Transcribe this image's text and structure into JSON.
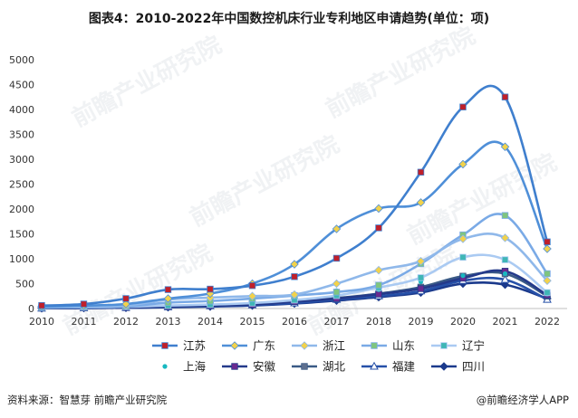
{
  "title": "图表4：2010-2022年中国数控机床行业专利地区申请趋势(单位：项)",
  "source": "资料来源：智慧芽 前瞻产业研究院",
  "credit": "@前瞻经济学人APP",
  "watermark": "前瞻产业研究院",
  "chart_data": {
    "type": "line",
    "x": [
      "2010",
      "2011",
      "2012",
      "2013",
      "2014",
      "2015",
      "2016",
      "2017",
      "2018",
      "2019",
      "2020",
      "2021",
      "2022"
    ],
    "ylim": [
      0,
      5000
    ],
    "yticks": [
      0,
      500,
      1000,
      1500,
      2000,
      2500,
      3000,
      3500,
      4000,
      4500,
      5000
    ],
    "grid": false,
    "legend_position": "bottom",
    "series": [
      {
        "name": "江苏",
        "color": "#3f7fce",
        "marker": "square",
        "marker_color": "#c0202a",
        "values": [
          60,
          90,
          200,
          380,
          390,
          460,
          640,
          1010,
          1620,
          2740,
          4050,
          4250,
          1340
        ]
      },
      {
        "name": "广东",
        "color": "#4f8fd8",
        "marker": "diamond",
        "marker_color": "#f2d24b",
        "values": [
          40,
          60,
          90,
          200,
          300,
          500,
          890,
          1600,
          2010,
          2130,
          2900,
          3250,
          1200
        ]
      },
      {
        "name": "浙江",
        "color": "#8fb8ea",
        "marker": "diamond",
        "marker_color": "#f2d24b",
        "values": [
          30,
          40,
          60,
          180,
          220,
          250,
          280,
          500,
          770,
          950,
          1400,
          1420,
          560
        ]
      },
      {
        "name": "山东",
        "color": "#7aaae6",
        "marker": "square",
        "marker_color": "#7fc57f",
        "values": [
          20,
          30,
          40,
          120,
          150,
          200,
          260,
          330,
          470,
          900,
          1480,
          1870,
          700
        ]
      },
      {
        "name": "辽宁",
        "color": "#aacaf2",
        "marker": "square",
        "marker_color": "#3fb6b6",
        "values": [
          20,
          25,
          35,
          60,
          80,
          110,
          170,
          260,
          420,
          620,
          1030,
          980,
          320
        ]
      },
      {
        "name": "上海",
        "color": "#39c0c6",
        "marker": "dot",
        "marker_color": "#18b8c0",
        "values": [
          15,
          20,
          30,
          60,
          90,
          130,
          250,
          360,
          380,
          540,
          660,
          700,
          290
        ]
      },
      {
        "name": "安徽",
        "color": "#243a8a",
        "marker": "square",
        "marker_color": "#6a2a90",
        "values": [
          10,
          15,
          20,
          40,
          60,
          80,
          140,
          200,
          290,
          400,
          610,
          750,
          270
        ]
      },
      {
        "name": "湖北",
        "color": "#3a5a86",
        "marker": "square",
        "marker_color": "#5d6f8e",
        "values": [
          10,
          15,
          25,
          50,
          70,
          100,
          150,
          210,
          300,
          430,
          650,
          700,
          250
        ]
      },
      {
        "name": "福建",
        "color": "#2650a8",
        "marker": "triangle",
        "marker_color": "#ffffff",
        "values": [
          5,
          10,
          15,
          30,
          50,
          70,
          110,
          180,
          250,
          350,
          560,
          580,
          180
        ]
      },
      {
        "name": "四川",
        "color": "#1b3a8c",
        "marker": "diamond",
        "marker_color": "#1b3a8c",
        "values": [
          5,
          10,
          15,
          25,
          40,
          60,
          100,
          160,
          230,
          320,
          500,
          480,
          200
        ]
      }
    ]
  }
}
